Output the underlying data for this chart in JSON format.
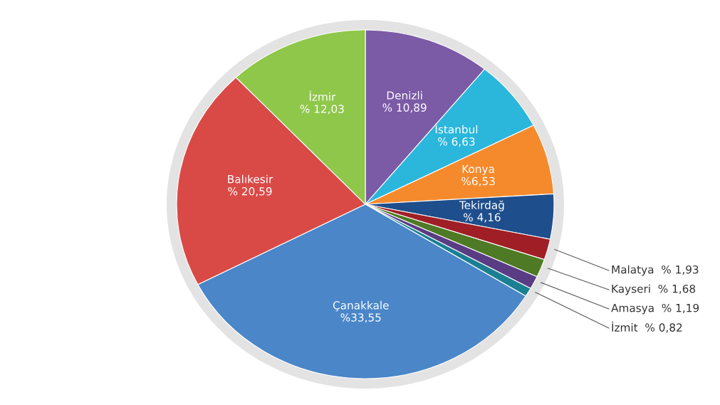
{
  "chart_data": {
    "type": "pie",
    "categories": [
      "Denizli",
      "İstanbul",
      "Konya",
      "Tekirdağ",
      "Malatya",
      "Kayseri",
      "Amasya",
      "İzmit",
      "Çanakkale",
      "Balıkesir",
      "İzmir"
    ],
    "values": [
      10.89,
      6.63,
      6.53,
      4.16,
      1.93,
      1.68,
      1.19,
      0.82,
      33.55,
      20.59,
      12.03
    ],
    "value_labels": [
      "% 10,89",
      "% 6,63",
      "%6,53",
      "% 4,16",
      "% 1,93",
      "% 1,68",
      "% 1,19",
      "% 0,82",
      "%33,55",
      "% 20,59",
      "% 12,03"
    ],
    "colors": [
      "#7b5aa6",
      "#2bb6dc",
      "#f58a2c",
      "#1f4e8c",
      "#a01f26",
      "#4e7a25",
      "#5a3c84",
      "#1b7f93",
      "#4a86c8",
      "#d94a47",
      "#8fc74a"
    ]
  }
}
